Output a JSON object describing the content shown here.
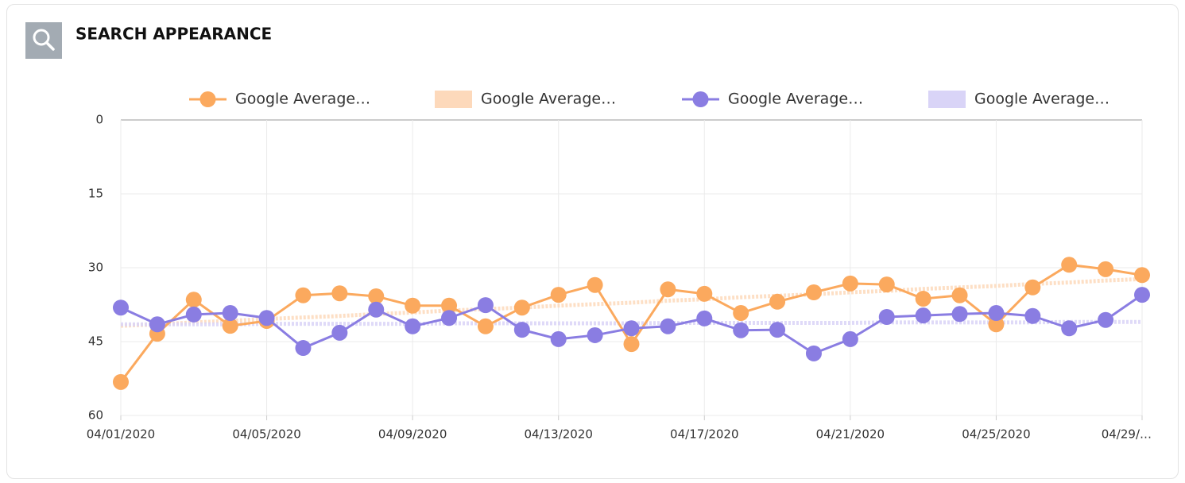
{
  "header": {
    "title": "SEARCH APPEARANCE"
  },
  "chart_data": {
    "type": "line",
    "y_inverted": true,
    "grid": true,
    "legend": "top",
    "categories": [
      "04/01/2020",
      null,
      null,
      null,
      "04/05/2020",
      null,
      null,
      null,
      "04/09/2020",
      null,
      null,
      null,
      "04/13/2020",
      null,
      null,
      null,
      "04/17/2020",
      null,
      null,
      null,
      "04/21/2020",
      null,
      null,
      null,
      "04/25/2020",
      null,
      null,
      null,
      "04/29/…"
    ],
    "ylim": [
      0,
      60
    ],
    "yticks": [
      0,
      15,
      30,
      45,
      60
    ],
    "series": [
      {
        "name": "Google Average…",
        "color": "#fba95e",
        "style": "markers",
        "values": [
          53.2,
          43.4,
          36.5,
          41.8,
          40.8,
          35.6,
          35.2,
          35.8,
          37.7,
          37.7,
          41.9,
          38.1,
          35.5,
          33.5,
          45.5,
          34.4,
          35.3,
          39.2,
          36.9,
          35.0,
          33.2,
          33.4,
          36.3,
          35.6,
          41.5,
          34.0,
          29.4,
          30.3,
          31.5
        ]
      },
      {
        "name": "Google Average…",
        "color": "#fdd9bb",
        "style": "trend",
        "values": [
          41.8,
          41.5,
          41.1,
          40.8,
          40.4,
          40.1,
          39.8,
          39.4,
          39.1,
          38.7,
          38.4,
          38.1,
          37.7,
          37.4,
          37.1,
          36.7,
          36.4,
          36.0,
          35.7,
          35.4,
          35.0,
          34.7,
          34.3,
          34.0,
          33.7,
          33.3,
          33.0,
          32.6,
          32.3
        ]
      },
      {
        "name": "Google Average…",
        "color": "#8a7de2",
        "style": "markers",
        "values": [
          38.1,
          41.5,
          39.5,
          39.2,
          40.2,
          46.3,
          43.2,
          38.5,
          41.9,
          40.2,
          37.6,
          42.6,
          44.5,
          43.7,
          42.3,
          41.9,
          40.3,
          42.7,
          42.6,
          47.4,
          44.5,
          40.0,
          39.7,
          39.4,
          39.2,
          39.8,
          42.3,
          40.6,
          35.5
        ]
      },
      {
        "name": "Google Average…",
        "color": "#d9d4f7",
        "style": "trend",
        "values": [
          41.5,
          41.5,
          41.5,
          41.5,
          41.4,
          41.4,
          41.4,
          41.4,
          41.4,
          41.3,
          41.3,
          41.3,
          41.3,
          41.3,
          41.3,
          41.2,
          41.2,
          41.2,
          41.2,
          41.2,
          41.2,
          41.1,
          41.1,
          41.1,
          41.1,
          41.1,
          41.0,
          41.0,
          41.0
        ]
      }
    ]
  }
}
